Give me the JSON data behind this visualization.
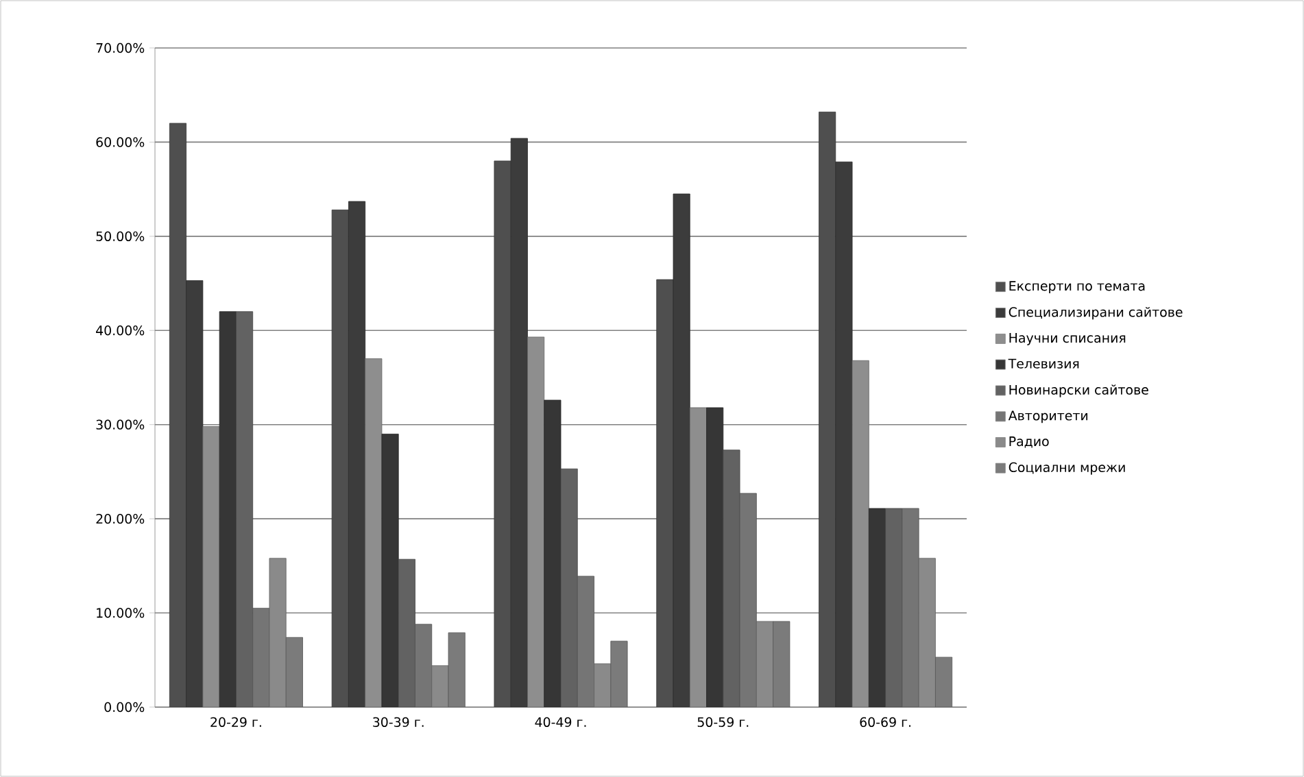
{
  "chart_data": {
    "type": "bar",
    "categories": [
      "20-29 г.",
      "30-39 г.",
      "40-49 г.",
      "50-59 г.",
      "60-69 г."
    ],
    "series": [
      {
        "name": "Експерти по темата",
        "color": "#4f4f4f",
        "values": [
          62,
          52.8,
          58,
          45.4,
          63.2
        ]
      },
      {
        "name": "Специализирани сайтове",
        "color": "#3c3c3c",
        "values": [
          45.3,
          53.7,
          60.4,
          54.5,
          57.9
        ]
      },
      {
        "name": "Научни списания",
        "color": "#8e8e8e",
        "values": [
          29.8,
          37,
          39.3,
          31.8,
          36.8
        ]
      },
      {
        "name": "Телевизия",
        "color": "#363636",
        "values": [
          42,
          29,
          32.6,
          31.8,
          21.1
        ]
      },
      {
        "name": "Новинарски сайтове",
        "color": "#626262",
        "values": [
          42,
          15.7,
          25.3,
          27.3,
          21.1
        ]
      },
      {
        "name": "Авторитети",
        "color": "#757575",
        "values": [
          10.5,
          8.8,
          13.9,
          22.7,
          21.1
        ]
      },
      {
        "name": "Радио",
        "color": "#8a8a8a",
        "values": [
          15.8,
          4.4,
          4.6,
          9.1,
          15.8
        ]
      },
      {
        "name": "Социални мрежи",
        "color": "#7b7b7b",
        "values": [
          7.4,
          7.9,
          7,
          9.1,
          5.3
        ]
      }
    ],
    "ylim": [
      0,
      70
    ],
    "yticks": [
      {
        "value": 0,
        "label": "0.00%"
      },
      {
        "value": 10,
        "label": "10.00%"
      },
      {
        "value": 20,
        "label": "20.00%"
      },
      {
        "value": 30,
        "label": "30.00%"
      },
      {
        "value": 40,
        "label": "40.00%"
      },
      {
        "value": 50,
        "label": "50.00%"
      },
      {
        "value": 60,
        "label": "60.00%"
      },
      {
        "value": 70,
        "label": "70.00%"
      }
    ],
    "grid": "y",
    "legend": "right"
  }
}
